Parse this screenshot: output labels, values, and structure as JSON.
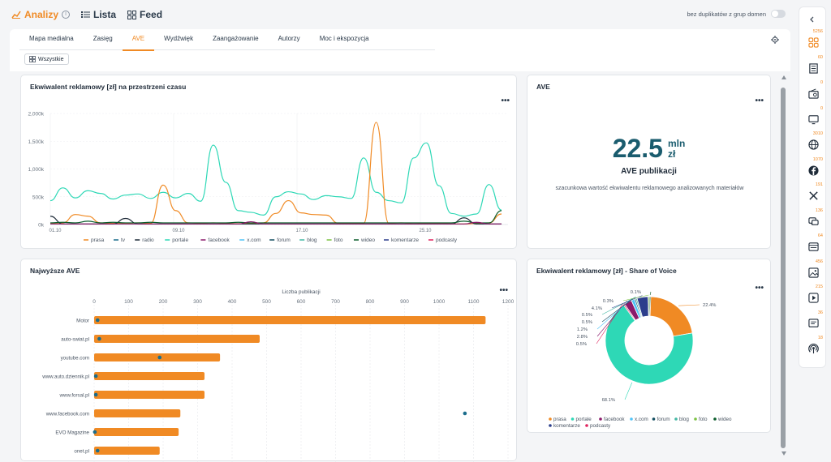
{
  "nav": {
    "analizy": "Analizy",
    "lista": "Lista",
    "feed": "Feed",
    "duplicates_label": "bez duplikatów z grup domen"
  },
  "tabs": [
    "Mapa medialna",
    "Zasięg",
    "AVE",
    "Wydźwięk",
    "Zaangażowanie",
    "Autorzy",
    "Moc i ekspozycja"
  ],
  "active_tab": "AVE",
  "filter_chip": "Wszystkie",
  "colors": {
    "prasa": "#f08a24",
    "tv": "#1b6d8c",
    "radio": "#1e2a38",
    "portale": "#2ed8b6",
    "facebook": "#8b1a6b",
    "xcom": "#4fc3f7",
    "forum": "#124d60",
    "blog": "#43b8a4",
    "foto": "#7cc243",
    "wideo": "#0a5c2b",
    "komentarze": "#2c3e8c",
    "podcasty": "#e0245e"
  },
  "right_sidebar": [
    {
      "icon": "all-sources-icon",
      "count": "5256"
    },
    {
      "icon": "newspaper-icon",
      "count": "60"
    },
    {
      "icon": "radio-icon",
      "count": "0"
    },
    {
      "icon": "tv-icon",
      "count": "0"
    },
    {
      "icon": "globe-icon",
      "count": "3010"
    },
    {
      "icon": "facebook-icon",
      "count": "1070"
    },
    {
      "icon": "x-icon",
      "count": "191"
    },
    {
      "icon": "forum-icon",
      "count": "136"
    },
    {
      "icon": "blog-icon",
      "count": "64"
    },
    {
      "icon": "photo-icon",
      "count": "456"
    },
    {
      "icon": "video-icon",
      "count": "215"
    },
    {
      "icon": "comments-icon",
      "count": "36"
    },
    {
      "icon": "podcast-icon",
      "count": "18"
    }
  ],
  "ave_card": {
    "title": "AVE",
    "value": "22.5",
    "unit_top": "mln",
    "unit_bottom": "zł",
    "label": "AVE publikacji",
    "description": "szacunkowa wartość ekwiwalentu reklamowego analizowanych materiałów"
  },
  "chart_data": [
    {
      "type": "line",
      "title": "Ekwiwalent reklamowy [zł] na przestrzeni czasu",
      "x_ticks": [
        "01.10",
        "09.10",
        "17.10",
        "25.10"
      ],
      "y_ticks": [
        "0k",
        "500k",
        "1,000k",
        "1,500k",
        "2,000k"
      ],
      "ylim": [
        0,
        2000000
      ],
      "legend": [
        "prasa",
        "tv",
        "radio",
        "portale",
        "facebook",
        "x.com",
        "forum",
        "blog",
        "foto",
        "wideo",
        "komentarze",
        "podcasty"
      ],
      "legend_position": "bottom",
      "series": [
        {
          "name": "portale",
          "color": "#2ed8b6",
          "values": [
            430000,
            660000,
            480000,
            610000,
            560000,
            460000,
            530000,
            550000,
            470000,
            580000,
            480000,
            560000,
            420000,
            1430000,
            760000,
            250000,
            220000,
            170000,
            500000,
            590000,
            550000,
            450000,
            520000,
            500000,
            470000,
            1200000,
            580000,
            430000,
            390000,
            1200000,
            1470000,
            700000,
            200000,
            150000,
            190000,
            720000,
            260000
          ]
        },
        {
          "name": "prasa",
          "color": "#f08a24",
          "values": [
            20000,
            30000,
            180000,
            150000,
            30000,
            20000,
            20000,
            30000,
            20000,
            710000,
            250000,
            30000,
            20000,
            30000,
            20000,
            15000,
            20000,
            30000,
            200000,
            430000,
            210000,
            180000,
            170000,
            20000,
            20000,
            20000,
            1840000,
            20000,
            30000,
            10000,
            20000,
            20000,
            10000,
            10000,
            20000,
            30000,
            190000
          ]
        },
        {
          "name": "radio",
          "color": "#1e2a38",
          "values": [
            150000,
            10000,
            10000,
            10000,
            10000,
            10000,
            110000,
            10000,
            10000,
            10000,
            10000,
            10000,
            10000,
            10000,
            10000,
            10000,
            10000,
            10000,
            10000,
            10000,
            10000,
            10000,
            10000,
            10000,
            10000,
            10000,
            10000,
            10000,
            10000,
            10000,
            10000,
            10000,
            10000,
            120000,
            10000,
            10000,
            10000
          ]
        },
        {
          "name": "wideo",
          "color": "#0a5c2b",
          "values": [
            30000,
            40000,
            30000,
            60000,
            30000,
            40000,
            30000,
            30000,
            40000,
            30000,
            30000,
            30000,
            30000,
            30000,
            30000,
            40000,
            30000,
            30000,
            30000,
            30000,
            30000,
            30000,
            30000,
            30000,
            30000,
            30000,
            30000,
            30000,
            30000,
            30000,
            30000,
            30000,
            30000,
            60000,
            30000,
            30000,
            250000
          ]
        },
        {
          "name": "facebook",
          "color": "#8b1a6b",
          "values": [
            10000,
            10000,
            10000,
            10000,
            10000,
            10000,
            10000,
            10000,
            10000,
            10000,
            10000,
            10000,
            10000,
            10000,
            10000,
            10000,
            50000,
            10000,
            10000,
            10000,
            10000,
            10000,
            10000,
            10000,
            10000,
            10000,
            10000,
            10000,
            10000,
            10000,
            10000,
            10000,
            10000,
            10000,
            40000,
            10000,
            10000
          ]
        }
      ]
    },
    {
      "type": "bar",
      "title": "Najwyższe AVE",
      "xlabel": "Liczba publikacji",
      "x_ticks": [
        "0",
        "100",
        "200",
        "300",
        "400",
        "500",
        "600",
        "700",
        "800",
        "900",
        "1000",
        "1100",
        "1200"
      ],
      "xlim": [
        0,
        1200
      ],
      "categories": [
        "Motor",
        "auto-swiat.pl",
        "youtube.com",
        "www.auto.dziennik.pl",
        "www.forsal.pl",
        "www.facebook.com",
        "EVO Magazine",
        "onet.pl"
      ],
      "values": [
        1135,
        480,
        365,
        320,
        320,
        250,
        245,
        190
      ],
      "dots": [
        10,
        15,
        190,
        5,
        5,
        1075,
        2,
        10
      ]
    },
    {
      "type": "pie",
      "title": "Ekwiwalent reklamowy [zł] - Share of Voice",
      "slices": [
        {
          "name": "prasa",
          "value": 22.4,
          "label": "22.4%"
        },
        {
          "name": "portale",
          "value": 68.1,
          "label": "68.1%"
        },
        {
          "name": "podcasty",
          "value": 0.5,
          "label": "0.5%"
        },
        {
          "name": "facebook",
          "value": 2.8,
          "label": "2.8%"
        },
        {
          "name": "x.com",
          "value": 1.2,
          "label": "1.2%"
        },
        {
          "name": "forum",
          "value": 0.5,
          "label": "0.5%"
        },
        {
          "name": "blog",
          "value": 0.5,
          "label": "0.5%"
        },
        {
          "name": "komentarze",
          "value": 4.1,
          "label": "4.1%"
        },
        {
          "name": "foto",
          "value": 0.3,
          "label": "0.3%"
        },
        {
          "name": "wideo",
          "value": 0.1,
          "label": "0.1%"
        }
      ],
      "legend": [
        "prasa",
        "portale",
        "facebook",
        "x.com",
        "forum",
        "blog",
        "foto",
        "wideo",
        "komentarze",
        "podcasty"
      ],
      "legend_position": "bottom"
    }
  ]
}
